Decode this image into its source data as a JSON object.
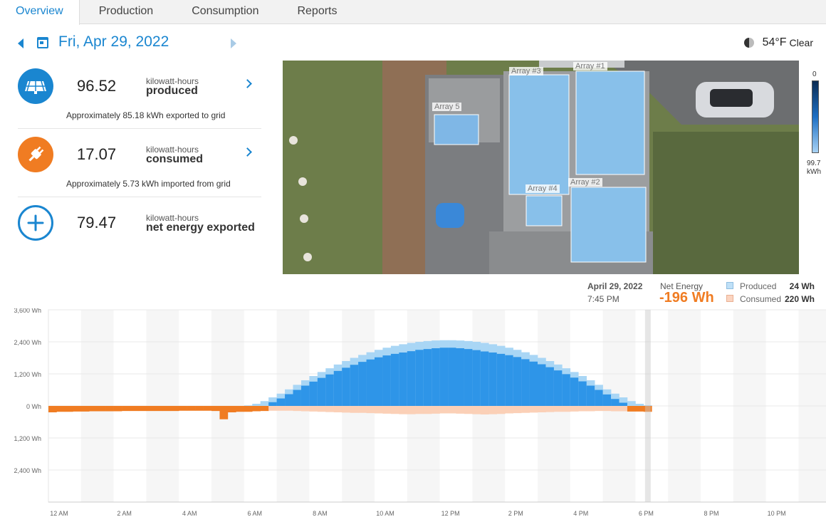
{
  "tabs": [
    "Overview",
    "Production",
    "Consumption",
    "Reports"
  ],
  "date": "Fri, Apr 29, 2022",
  "weather": {
    "temp": "54°F",
    "condition": "Clear"
  },
  "stats": [
    {
      "value": "96.52",
      "unit": "kilowatt-hours",
      "label": "produced",
      "note": "Approximately 85.18 kWh exported to grid"
    },
    {
      "value": "17.07",
      "unit": "kilowatt-hours",
      "label": "consumed",
      "note": "Approximately 5.73 kWh imported from grid"
    },
    {
      "value": "79.47",
      "unit": "kilowatt-hours",
      "label": "net energy exported"
    }
  ],
  "map": {
    "arrays": [
      "Array #1",
      "Array #2",
      "Array #3",
      "Array #4",
      "Array 5"
    ],
    "legend_min": "0",
    "legend_max_value": "99.7",
    "legend_max_unit": "kWh"
  },
  "chart_header": {
    "date": "April 29, 2022",
    "time": "7:45 PM",
    "net_label": "Net Energy",
    "net_value": "-196 Wh",
    "produced_label": "Produced",
    "produced_value": "24 Wh",
    "consumed_label": "Consumed",
    "consumed_value": "220 Wh"
  },
  "colors": {
    "produced": "#2e95e8",
    "produced_light": "#a9d6f5",
    "consumed": "#f07c22",
    "consumed_light": "#fbd0b7",
    "accent": "#1a86d0"
  },
  "chart_data": {
    "type": "bar",
    "interval_minutes": 15,
    "y_ticks": [
      "2,400 Wh",
      "1,200 Wh",
      "0 Wh",
      "1,200 Wh",
      "2,400 Wh",
      "3,600 Wh"
    ],
    "x_ticks": [
      "12 AM",
      "2 AM",
      "4 AM",
      "6 AM",
      "8 AM",
      "10 AM",
      "12 PM",
      "2 PM",
      "4 PM",
      "6 PM",
      "8 PM",
      "10 PM"
    ],
    "ylim": [
      -3600,
      3600
    ],
    "series": [
      {
        "name": "Produced",
        "values": [
          0,
          0,
          0,
          0,
          0,
          0,
          0,
          0,
          0,
          0,
          0,
          0,
          0,
          0,
          0,
          0,
          0,
          0,
          0,
          0,
          0,
          0,
          0,
          0,
          20,
          80,
          180,
          320,
          460,
          620,
          790,
          960,
          1120,
          1270,
          1410,
          1550,
          1680,
          1800,
          1910,
          2010,
          2100,
          2180,
          2250,
          2310,
          2360,
          2400,
          2430,
          2450,
          2460,
          2460,
          2450,
          2430,
          2400,
          2360,
          2310,
          2250,
          2180,
          2100,
          2010,
          1910,
          1800,
          1680,
          1550,
          1410,
          1270,
          1120,
          960,
          790,
          620,
          460,
          320,
          180,
          80,
          24
        ]
      },
      {
        "name": "Consumed",
        "values": [
          240,
          220,
          220,
          210,
          210,
          200,
          200,
          200,
          200,
          190,
          190,
          190,
          190,
          190,
          190,
          190,
          180,
          180,
          180,
          180,
          190,
          500,
          240,
          220,
          220,
          200,
          190,
          180,
          180,
          180,
          190,
          200,
          210,
          220,
          230,
          240,
          250,
          260,
          260,
          270,
          280,
          290,
          300,
          310,
          310,
          300,
          300,
          290,
          280,
          280,
          290,
          300,
          310,
          320,
          310,
          300,
          280,
          270,
          260,
          250,
          240,
          230,
          220,
          220,
          210,
          200,
          200,
          190,
          190,
          200,
          200,
          210,
          210,
          220
        ]
      }
    ]
  }
}
